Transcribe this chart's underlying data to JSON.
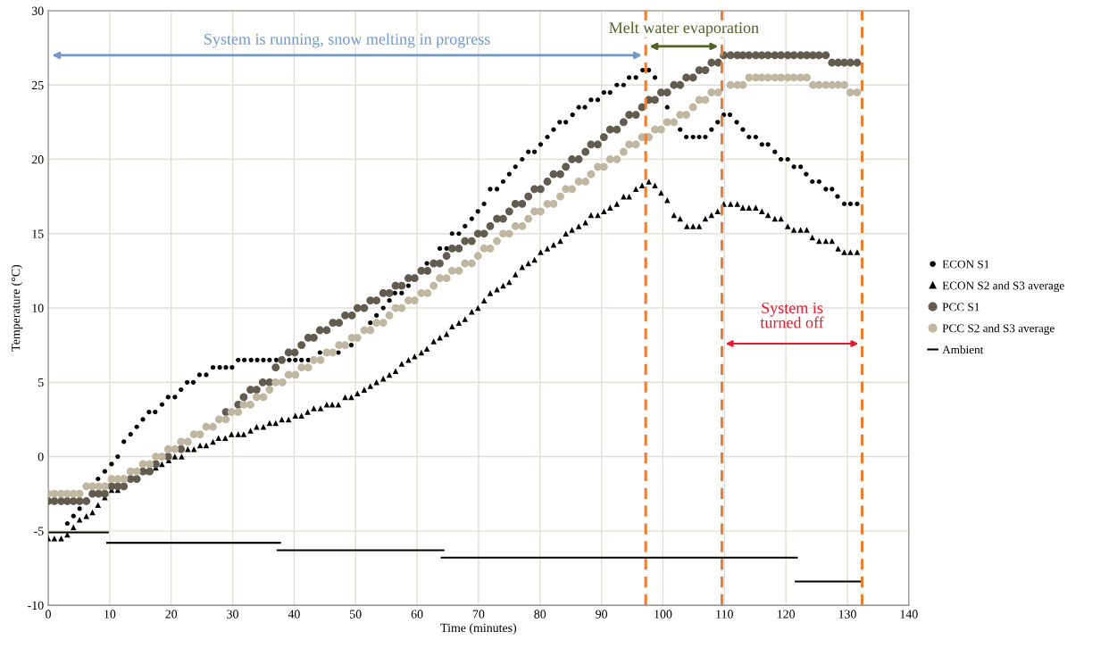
{
  "chart_data": {
    "type": "scatter",
    "xlabel": "Time (minutes)",
    "ylabel": "Temperature (°C)",
    "xlim": [
      0,
      140
    ],
    "xticks": [
      0,
      10,
      20,
      30,
      40,
      50,
      60,
      70,
      80,
      90,
      100,
      110,
      120,
      130,
      140
    ],
    "ylim": [
      -10,
      30
    ],
    "yticks": [
      -10,
      -5,
      0,
      5,
      10,
      15,
      20,
      25,
      30
    ],
    "grid": true,
    "legend": "right",
    "series": [
      {
        "name": "ECON S1",
        "marker": "circle",
        "color": "#000000",
        "x": [
          3.1,
          4.1,
          5.1,
          8.1,
          9.2,
          10.3,
          11.3,
          12.3,
          13.4,
          14.4,
          15.4,
          16.4,
          17.4,
          18.5,
          19.5,
          20.6,
          21.6,
          22.6,
          23.6,
          24.6,
          25.7,
          26.8,
          27.9,
          28.9,
          29.9,
          30.9,
          31.9,
          33.0,
          34.0,
          35.0,
          36.0,
          37.1,
          39.2,
          40.2,
          41.2,
          42.3,
          44.2,
          47.2,
          49.3,
          52.4,
          53.4,
          54.5,
          55.5,
          56.4,
          57.5,
          58.6,
          61.6,
          63.7,
          64.8,
          65.7,
          66.8,
          67.8,
          68.9,
          69.9,
          70.9,
          71.9,
          73.0,
          74.0,
          75.0,
          76.0,
          77.1,
          78.1,
          79.1,
          80.1,
          81.2,
          82.2,
          83.2,
          84.2,
          85.3,
          86.3,
          87.3,
          88.3,
          89.4,
          90.4,
          91.4,
          92.5,
          93.6,
          94.5,
          95.6,
          96.7,
          97.7,
          98.7,
          100.7,
          102.8,
          103.8,
          104.9,
          105.9,
          106.9,
          107.9,
          108.9,
          109.9,
          110.9,
          112.0,
          113.0,
          114.0,
          115.1,
          116.1,
          117.1,
          118.2,
          119.2,
          120.3,
          121.3,
          122.4,
          123.3,
          124.3,
          125.4,
          126.5,
          127.5,
          128.4,
          129.5,
          130.5,
          131.6
        ],
        "values": [
          -4.5,
          -4.0,
          -3.5,
          -1.5,
          -1.0,
          -0.5,
          0,
          1.0,
          1.5,
          2.0,
          2.5,
          3.0,
          3.0,
          3.5,
          4.0,
          4.0,
          4.5,
          5.0,
          5.0,
          5.5,
          5.5,
          6.0,
          6.0,
          6.0,
          6.0,
          6.5,
          6.5,
          6.5,
          6.5,
          6.5,
          6.5,
          6.5,
          6.5,
          6.5,
          6.5,
          6.5,
          7.0,
          7.0,
          7.5,
          9.0,
          9.5,
          10.0,
          10.5,
          11.0,
          11.0,
          11.5,
          13.0,
          14.0,
          14.0,
          15.0,
          15.0,
          15.5,
          16.0,
          16.5,
          17.0,
          18.0,
          18.0,
          18.5,
          19.0,
          19.5,
          20.0,
          20.5,
          20.5,
          21.0,
          21.5,
          22.0,
          22.5,
          22.5,
          23.0,
          23.5,
          23.5,
          24.0,
          24.0,
          24.5,
          24.5,
          25.0,
          25.0,
          25.5,
          25.5,
          26.0,
          26.0,
          25.5,
          23.5,
          22.0,
          21.5,
          21.5,
          21.5,
          21.5,
          22.0,
          22.5,
          23.0,
          23.0,
          22.5,
          22.0,
          21.5,
          21.5,
          21.0,
          21.0,
          20.5,
          20.0,
          20.0,
          19.5,
          19.5,
          19.0,
          18.5,
          18.5,
          18.0,
          18.0,
          17.5,
          17.0,
          17.0,
          17.0
        ]
      },
      {
        "name": "ECON S2 and S3 average",
        "marker": "triangle",
        "color": "#000000",
        "x": [
          0,
          1.0,
          2.1,
          3.1,
          4.1,
          5.1,
          6.2,
          7.2,
          8.1,
          9.2,
          10.3,
          11.3,
          16.4,
          17.5,
          18.5,
          19.6,
          20.6,
          21.7,
          22.7,
          23.7,
          24.7,
          25.7,
          26.8,
          27.7,
          28.8,
          29.8,
          30.9,
          31.8,
          32.9,
          33.9,
          35.0,
          36.0,
          37.0,
          38.0,
          39.1,
          40.2,
          41.2,
          42.2,
          43.2,
          44.3,
          45.3,
          46.2,
          47.2,
          48.3,
          49.3,
          50.3,
          51.4,
          52.4,
          53.4,
          54.5,
          55.5,
          56.5,
          57.5,
          58.6,
          59.6,
          60.7,
          61.6,
          62.7,
          63.7,
          64.8,
          65.7,
          66.8,
          67.8,
          68.9,
          69.9,
          70.9,
          71.9,
          73.0,
          74.0,
          75.0,
          76.0,
          77.1,
          78.1,
          79.1,
          80.1,
          81.2,
          82.2,
          83.3,
          84.2,
          85.2,
          86.3,
          87.4,
          88.3,
          89.4,
          90.4,
          91.4,
          92.5,
          93.6,
          94.5,
          95.6,
          96.6,
          97.7,
          98.7,
          99.7,
          100.7,
          101.8,
          102.8,
          103.9,
          104.9,
          105.9,
          106.9,
          107.9,
          108.9,
          109.9,
          111.0,
          112.1,
          113.0,
          114.0,
          115.1,
          116.1,
          117.1,
          118.2,
          119.2,
          120.3,
          121.3,
          122.4,
          123.4,
          124.3,
          125.4,
          126.5,
          127.5,
          128.5,
          129.5,
          130.5,
          131.6
        ],
        "values": [
          -5.5,
          -5.5,
          -5.5,
          -5.25,
          -4.75,
          -4.25,
          -4.0,
          -3.75,
          -3.25,
          -2.75,
          -2.25,
          -2.25,
          -1.0,
          -0.75,
          -0.5,
          -0.25,
          0.0,
          0.0,
          0.5,
          0.5,
          0.75,
          0.75,
          1.0,
          1.25,
          1.25,
          1.5,
          1.5,
          1.5,
          1.75,
          2.0,
          2.0,
          2.25,
          2.25,
          2.5,
          2.5,
          2.75,
          2.75,
          3.0,
          3.25,
          3.25,
          3.5,
          3.5,
          3.5,
          4.0,
          4.0,
          4.25,
          4.5,
          4.75,
          5.0,
          5.25,
          5.5,
          5.75,
          6.25,
          6.5,
          6.75,
          7.0,
          7.25,
          7.75,
          8.0,
          8.25,
          8.75,
          9.0,
          9.25,
          9.75,
          10.0,
          10.5,
          11.0,
          11.25,
          11.5,
          11.75,
          12.25,
          12.75,
          13.0,
          13.25,
          13.75,
          14.0,
          14.25,
          14.5,
          15.0,
          15.25,
          15.5,
          15.75,
          16.25,
          16.25,
          16.5,
          16.75,
          17.0,
          17.5,
          17.5,
          18.0,
          18.25,
          18.5,
          18.25,
          17.75,
          17.25,
          16.25,
          16.0,
          15.5,
          15.5,
          15.5,
          16.0,
          16.25,
          16.5,
          17.0,
          17.0,
          17.0,
          16.75,
          16.75,
          16.75,
          16.5,
          16.25,
          16.0,
          16.0,
          15.5,
          15.25,
          15.25,
          15.25,
          14.75,
          14.5,
          14.5,
          14.5,
          14.0,
          13.75,
          13.75,
          13.75
        ]
      },
      {
        "name": "PCC S1",
        "marker": "circle",
        "color": "#625c50",
        "x": [
          0,
          1.0,
          2.1,
          3.1,
          4.1,
          5.1,
          6.2,
          7.2,
          8.2,
          9.2,
          10.3,
          11.3,
          12.3,
          13.4,
          14.4,
          15.4,
          16.5,
          17.5,
          19.5,
          21.6,
          28.9,
          30.9,
          31.8,
          32.9,
          33.9,
          34.9,
          36.0,
          37.0,
          38.0,
          39.1,
          40.1,
          41.2,
          42.3,
          43.2,
          44.2,
          45.3,
          46.3,
          47.3,
          48.3,
          49.4,
          50.3,
          51.4,
          52.4,
          53.4,
          54.5,
          55.5,
          56.5,
          57.5,
          58.6,
          59.6,
          60.7,
          61.7,
          62.7,
          63.7,
          64.8,
          65.7,
          66.8,
          67.8,
          68.9,
          69.9,
          70.9,
          71.9,
          73.0,
          74.0,
          75.0,
          76.0,
          77.1,
          78.1,
          79.1,
          80.1,
          81.2,
          82.2,
          83.3,
          84.2,
          85.2,
          86.3,
          87.4,
          88.3,
          89.4,
          90.4,
          91.4,
          92.5,
          93.6,
          94.5,
          95.6,
          96.6,
          97.7,
          98.7,
          99.7,
          100.7,
          101.8,
          102.8,
          103.8,
          104.9,
          105.9,
          106.9,
          107.9,
          109.0,
          109.9,
          111.0,
          112.1,
          113.0,
          114.0,
          115.1,
          116.1,
          117.1,
          118.2,
          119.2,
          120.3,
          121.3,
          122.4,
          123.4,
          124.4,
          125.4,
          126.5,
          127.5,
          128.5,
          129.5,
          130.5,
          131.6
        ],
        "values": [
          -3.0,
          -3.0,
          -3.0,
          -3.0,
          -3.0,
          -3.0,
          -3.0,
          -2.5,
          -2.5,
          -2.5,
          -2.0,
          -2.0,
          -2.0,
          -1.5,
          -1.5,
          -1.0,
          -1.0,
          -0.5,
          0.0,
          0.5,
          3.0,
          3.5,
          4.0,
          4.5,
          4.5,
          5.0,
          5.0,
          6.0,
          6.5,
          7.0,
          7.0,
          7.5,
          8.0,
          8.0,
          8.5,
          8.5,
          9.0,
          9.0,
          9.5,
          9.5,
          10.0,
          10.0,
          10.5,
          10.5,
          11.0,
          11.0,
          11.5,
          11.5,
          12.0,
          12.0,
          12.5,
          12.5,
          13.0,
          13.0,
          13.5,
          14.0,
          14.0,
          14.5,
          14.5,
          15.0,
          15.0,
          15.5,
          16.0,
          16.0,
          16.5,
          17.0,
          17.0,
          17.5,
          18.0,
          18.0,
          18.5,
          19.0,
          19.0,
          19.5,
          20.0,
          20.0,
          20.5,
          21.0,
          21.0,
          21.5,
          22.0,
          22.0,
          22.5,
          23.0,
          23.0,
          23.5,
          24.0,
          24.0,
          24.5,
          24.5,
          25.0,
          25.0,
          25.5,
          25.5,
          26.0,
          26.0,
          26.5,
          26.5,
          27.0,
          27.0,
          27.0,
          27.0,
          27.0,
          27.0,
          27.0,
          27.0,
          27.0,
          27.0,
          27.0,
          27.0,
          27.0,
          27.0,
          27.0,
          27.0,
          27.0,
          26.5,
          26.5,
          26.5,
          26.5,
          26.5
        ]
      },
      {
        "name": "PCC S2 and S3 average",
        "marker": "circle",
        "color": "#bfb7a1",
        "x": [
          0,
          1.0,
          2.1,
          3.1,
          4.1,
          5.1,
          6.2,
          7.2,
          8.2,
          9.2,
          10.3,
          11.3,
          12.3,
          13.4,
          14.4,
          15.4,
          16.5,
          17.5,
          18.5,
          19.5,
          20.6,
          21.6,
          22.7,
          23.7,
          24.7,
          25.7,
          26.8,
          27.8,
          28.9,
          29.8,
          30.9,
          31.8,
          32.9,
          33.9,
          35.0,
          36.0,
          37.0,
          38.1,
          39.1,
          40.2,
          41.2,
          42.3,
          43.2,
          44.3,
          45.3,
          46.3,
          47.3,
          48.3,
          49.4,
          50.3,
          51.4,
          52.4,
          53.4,
          54.5,
          55.5,
          56.5,
          57.5,
          58.6,
          59.6,
          60.7,
          61.7,
          62.7,
          63.7,
          64.8,
          65.7,
          66.8,
          67.8,
          68.9,
          69.9,
          70.9,
          71.9,
          73.0,
          74.0,
          75.0,
          76.0,
          77.1,
          78.1,
          79.1,
          80.1,
          81.2,
          82.2,
          83.3,
          84.2,
          85.2,
          86.3,
          87.4,
          88.3,
          89.4,
          90.4,
          91.4,
          92.5,
          93.6,
          94.5,
          95.6,
          96.6,
          97.7,
          98.7,
          99.7,
          100.7,
          101.8,
          102.8,
          103.8,
          104.9,
          105.9,
          106.9,
          107.9,
          109.0,
          111.0,
          112.1,
          113.0,
          114.0,
          115.1,
          116.1,
          117.1,
          118.2,
          119.2,
          120.3,
          121.3,
          122.4,
          123.4,
          124.4,
          125.4,
          126.5,
          127.5,
          128.5,
          129.5,
          130.5,
          131.6
        ],
        "values": [
          -2.5,
          -2.5,
          -2.5,
          -2.5,
          -2.5,
          -2.5,
          -2.0,
          -2.0,
          -2.0,
          -2.0,
          -1.5,
          -1.5,
          -1.5,
          -1.0,
          -1.0,
          -0.5,
          -0.5,
          0.0,
          0.0,
          0.5,
          0.5,
          1.0,
          1.0,
          1.5,
          1.5,
          2.0,
          2.0,
          2.5,
          2.5,
          3.0,
          3.0,
          3.5,
          3.5,
          4.0,
          4.0,
          4.5,
          5.0,
          5.0,
          5.5,
          5.5,
          6.0,
          6.0,
          6.5,
          6.5,
          7.0,
          7.0,
          7.5,
          7.5,
          8.0,
          8.0,
          8.5,
          8.5,
          9.0,
          9.0,
          9.5,
          10.0,
          10.0,
          10.5,
          10.5,
          11.0,
          11.0,
          11.5,
          12.0,
          12.0,
          12.5,
          12.5,
          13.0,
          13.0,
          13.5,
          14.0,
          14.0,
          14.5,
          15.0,
          15.0,
          15.5,
          15.5,
          16.0,
          16.5,
          16.5,
          17.0,
          17.0,
          17.5,
          18.0,
          18.0,
          18.5,
          18.5,
          19.0,
          19.5,
          19.5,
          20.0,
          20.0,
          20.5,
          21.0,
          21.0,
          21.5,
          21.5,
          22.0,
          22.0,
          22.5,
          22.5,
          23.0,
          23.0,
          23.5,
          24.0,
          24.0,
          24.5,
          24.5,
          25.0,
          25.0,
          25.0,
          25.5,
          25.5,
          25.5,
          25.5,
          25.5,
          25.5,
          25.5,
          25.5,
          25.5,
          25.5,
          25.0,
          25.0,
          25.0,
          25.0,
          25.0,
          25.0,
          24.5,
          24.5
        ]
      },
      {
        "name": "Ambient",
        "type": "line",
        "marker": "none",
        "color": "#000000",
        "x": [
          0,
          9.7,
          9.6,
          37.7,
          37.3,
          64.3,
          64.0,
          121.8,
          121.6,
          132.2
        ],
        "values": [
          -5.1,
          -5.1,
          -5.8,
          -5.8,
          -6.3,
          -6.3,
          -6.8,
          -6.8,
          -8.4,
          -8.4
        ]
      }
    ],
    "ref_lines": [
      {
        "axis": "x",
        "value": 97.2,
        "color": "#ed7d31",
        "line_style": "dashed"
      },
      {
        "axis": "x",
        "value": 109.6,
        "color": "#ed7d31",
        "line_style": "dashed"
      },
      {
        "axis": "x",
        "value": 132.4,
        "color": "#ed7d31",
        "line_style": "dashed"
      }
    ],
    "annotations": [
      "System is running, snow melting in progress",
      "Melt water evaporation",
      "System is\nturned off"
    ]
  }
}
